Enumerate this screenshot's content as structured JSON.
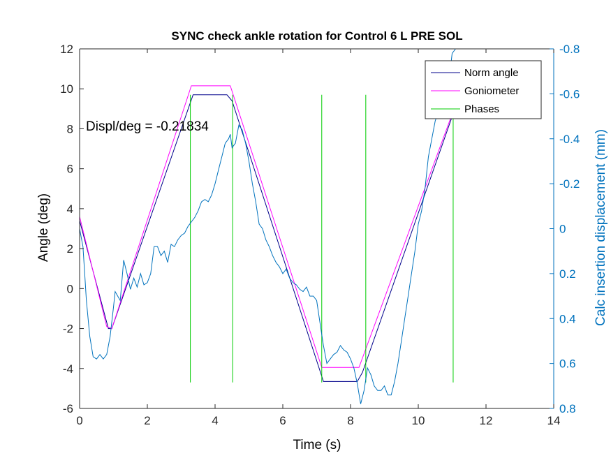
{
  "chart_data": {
    "type": "line",
    "title": "SYNC check ankle rotation for Control 6 L PRE SOL",
    "xlabel": "Time (s)",
    "ylabel": "Angle (deg)",
    "y2label": "Calc insertion displacement (mm)",
    "xlim": [
      0,
      14
    ],
    "ylim": [
      -6,
      12
    ],
    "y2lim": [
      0.8,
      -0.8
    ],
    "x_ticks": [
      "0",
      "2",
      "4",
      "6",
      "8",
      "10",
      "12",
      "14"
    ],
    "y_ticks": [
      "-6",
      "-4",
      "-2",
      "0",
      "2",
      "4",
      "6",
      "8",
      "10",
      "12"
    ],
    "y2_ticks": [
      "0.8",
      "0.6",
      "0.4",
      "0.2",
      "0",
      "-0.2",
      "-0.4",
      "-0.6",
      "-0.8"
    ],
    "annotation": "Displ/deg = -0.21834",
    "legend_position": "top-right",
    "colors": {
      "norm_angle": "#00008B",
      "goniometer": "#FF00FF",
      "phases": "#00CC00",
      "displacement": "#0072BD",
      "axis_right": "#0072BD"
    },
    "series": [
      {
        "name": "Norm angle",
        "axis": "left",
        "x": [
          0,
          0.85,
          0.95,
          3.35,
          4.35,
          4.5,
          7.2,
          8.2,
          8.35,
          11.1
        ],
        "y": [
          3.4,
          -2.0,
          -2.0,
          9.7,
          9.7,
          9.4,
          -4.65,
          -4.65,
          -4.2,
          9.1
        ]
      },
      {
        "name": "Goniometer",
        "axis": "left",
        "x": [
          0,
          0.8,
          0.95,
          3.3,
          4.45,
          7.15,
          8.25,
          11.1
        ],
        "y": [
          3.6,
          -1.9,
          -2.0,
          10.15,
          10.15,
          -3.95,
          -3.95,
          9.2
        ]
      },
      {
        "name": "Phases",
        "axis": "left",
        "segments": [
          {
            "x": 3.27,
            "y": [
              -4.7,
              9.7
            ]
          },
          {
            "x": 4.52,
            "y": [
              -4.7,
              9.7
            ]
          },
          {
            "x": 7.15,
            "y": [
              -4.7,
              9.7
            ]
          },
          {
            "x": 8.45,
            "y": [
              -4.7,
              9.7
            ]
          },
          {
            "x": 11.03,
            "y": [
              -4.7,
              9.7
            ]
          }
        ]
      },
      {
        "name": "Calc insertion displacement",
        "axis": "right",
        "x": [
          0,
          0.1,
          0.15,
          0.2,
          0.3,
          0.4,
          0.5,
          0.6,
          0.7,
          0.8,
          0.9,
          1.0,
          1.05,
          1.2,
          1.3,
          1.4,
          1.5,
          1.6,
          1.7,
          1.8,
          1.9,
          2.0,
          2.1,
          2.2,
          2.3,
          2.4,
          2.5,
          2.6,
          2.7,
          2.8,
          2.9,
          3.0,
          3.1,
          3.2,
          3.3,
          3.4,
          3.5,
          3.6,
          3.7,
          3.8,
          3.9,
          4.0,
          4.1,
          4.2,
          4.3,
          4.4,
          4.45,
          4.5,
          4.6,
          4.7,
          4.8,
          4.9,
          5.0,
          5.1,
          5.2,
          5.3,
          5.4,
          5.5,
          5.6,
          5.7,
          5.8,
          5.9,
          6.0,
          6.1,
          6.2,
          6.3,
          6.4,
          6.5,
          6.6,
          6.7,
          6.8,
          6.9,
          7.0,
          7.1,
          7.2,
          7.3,
          7.4,
          7.5,
          7.6,
          7.7,
          7.8,
          7.9,
          8.0,
          8.1,
          8.2,
          8.3,
          8.4,
          8.5,
          8.6,
          8.7,
          8.8,
          8.9,
          9.0,
          9.1,
          9.2,
          9.3,
          9.4,
          9.5,
          9.6,
          9.7,
          9.8,
          9.9,
          10.0,
          10.1,
          10.2,
          10.3,
          10.4,
          10.5,
          10.6,
          10.7,
          10.8,
          10.9,
          11.0,
          11.1
        ],
        "y": [
          0.0,
          0.08,
          0.2,
          0.32,
          0.48,
          0.57,
          0.58,
          0.56,
          0.58,
          0.56,
          0.48,
          0.35,
          0.28,
          0.32,
          0.14,
          0.2,
          0.27,
          0.22,
          0.26,
          0.2,
          0.25,
          0.24,
          0.2,
          0.08,
          0.08,
          0.12,
          0.1,
          0.15,
          0.07,
          0.08,
          0.05,
          0.03,
          0.02,
          -0.01,
          -0.03,
          -0.05,
          -0.08,
          -0.12,
          -0.13,
          -0.12,
          -0.15,
          -0.2,
          -0.26,
          -0.32,
          -0.38,
          -0.4,
          -0.42,
          -0.36,
          -0.38,
          -0.46,
          -0.44,
          -0.38,
          -0.3,
          -0.2,
          -0.12,
          -0.02,
          0.0,
          0.05,
          0.08,
          0.12,
          0.15,
          0.17,
          0.2,
          0.18,
          0.22,
          0.24,
          0.25,
          0.27,
          0.28,
          0.26,
          0.3,
          0.3,
          0.32,
          0.42,
          0.52,
          0.6,
          0.58,
          0.56,
          0.55,
          0.52,
          0.54,
          0.55,
          0.58,
          0.62,
          0.69,
          0.78,
          0.72,
          0.62,
          0.65,
          0.7,
          0.72,
          0.72,
          0.7,
          0.74,
          0.74,
          0.68,
          0.6,
          0.5,
          0.4,
          0.3,
          0.2,
          0.1,
          -0.02,
          -0.08,
          -0.18,
          -0.32,
          -0.4,
          -0.48,
          -0.52,
          -0.52,
          -0.58,
          -0.65,
          -0.78,
          -0.8
        ]
      }
    ]
  }
}
